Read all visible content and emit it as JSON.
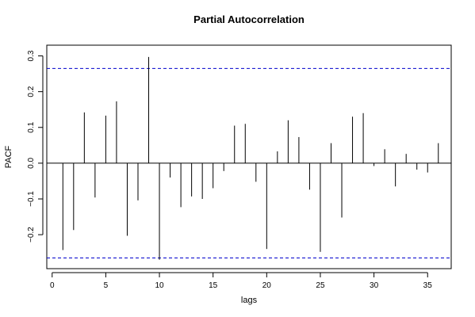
{
  "chart_data": {
    "type": "bar",
    "title": "Partial Autocorrelation",
    "xlabel": "lags",
    "ylabel": "PACF",
    "x_ticks": [
      0,
      5,
      10,
      15,
      20,
      25,
      30,
      35
    ],
    "y_ticks": [
      -0.2,
      -0.1,
      0.0,
      0.1,
      0.2,
      0.3
    ],
    "y_tick_labels": [
      "−0.2",
      "−0.1",
      "0.0",
      "0.1",
      "0.2",
      "0.3"
    ],
    "xlim": [
      -0.5,
      37.2
    ],
    "ylim": [
      -0.295,
      0.33
    ],
    "grid": false,
    "confidence_bounds": [
      -0.265,
      0.265
    ],
    "lags": [
      1,
      2,
      3,
      4,
      5,
      6,
      7,
      8,
      9,
      10,
      11,
      12,
      13,
      14,
      15,
      16,
      17,
      18,
      19,
      20,
      21,
      22,
      23,
      24,
      25,
      26,
      27,
      28,
      29,
      30,
      31,
      32,
      33,
      34,
      35,
      36
    ],
    "values": [
      -0.243,
      -0.187,
      0.142,
      -0.096,
      0.133,
      0.173,
      -0.203,
      -0.104,
      0.297,
      -0.27,
      -0.04,
      -0.123,
      -0.093,
      -0.1,
      -0.07,
      -0.022,
      0.105,
      0.11,
      -0.052,
      -0.24,
      0.033,
      0.12,
      0.073,
      -0.074,
      -0.248,
      0.056,
      -0.152,
      0.13,
      0.14,
      -0.008,
      0.039,
      -0.065,
      0.026,
      -0.018,
      -0.026,
      0.056
    ],
    "colors": {
      "bars": "#000000",
      "confidence": "#0000cc"
    }
  }
}
